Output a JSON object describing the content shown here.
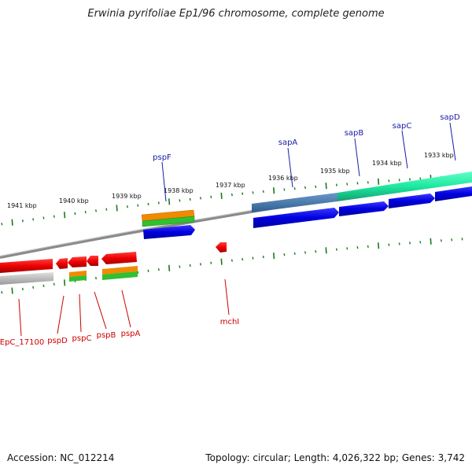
{
  "title": "Erwinia pyrifoliae Ep1/96 chromosome, complete genome",
  "ticks": [
    "1941 kbp",
    "1940 kbp",
    "1939 kbp",
    "1938 kbp",
    "1937 kbp",
    "1936 kbp",
    "1935 kbp",
    "1934 kbp",
    "1933 kbp"
  ],
  "genes_top": [
    "pspF",
    "sapA",
    "sapB",
    "sapC",
    "sapD"
  ],
  "genes_bottom": [
    "EpC_17100",
    "pspD",
    "pspC",
    "pspB",
    "pspA",
    "mchI"
  ],
  "footer": {
    "accession": "Accession: NC_012214",
    "summary": "Topology: circular; Length: 4,026,322 bp; Genes: 3,742"
  },
  "colors": {
    "forward_label": "#1a1aa8",
    "reverse_label": "#cc0000",
    "tick": "#1a7a1a",
    "backbone": "#808080"
  }
}
